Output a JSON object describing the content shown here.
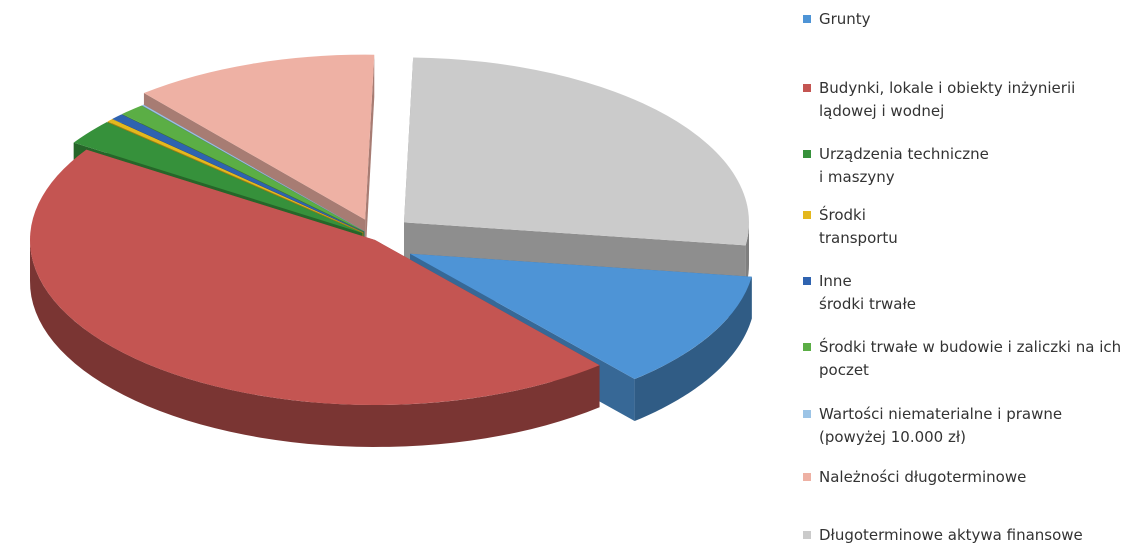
{
  "chart_data": {
    "type": "pie",
    "style": "3d-exploded",
    "title": "",
    "slices": [
      {
        "label": "Grunty",
        "value": 11.5,
        "color": "#4E94D6"
      },
      {
        "label": "Budynki, lokale i obiekty inżynierii\nlądowej i wodnej",
        "value": 45.5,
        "color": "#C45552"
      },
      {
        "label": "Urządzenia techniczne\ni maszyny",
        "value": 2.5,
        "color": "#36913B"
      },
      {
        "label": "Środki\ntransportu",
        "value": 0.3,
        "color": "#E4B81E"
      },
      {
        "label": "Inne\nśrodki trwałe",
        "value": 0.6,
        "color": "#2F63B0"
      },
      {
        "label": "Środki trwałe w budowie i zaliczki na ich\npoczet",
        "value": 1.2,
        "color": "#5BAE45"
      },
      {
        "label": "Wartości niematerialne i prawne\n(powyżej 10.000 zł)",
        "value": 0.1,
        "color": "#9CC4E6"
      },
      {
        "label": "Należności długoterminowe",
        "value": 11.5,
        "color": "#EEB1A4"
      },
      {
        "label": "Długoterminowe aktywa finansowe",
        "value": 26.8,
        "color": "#CBCBCB"
      }
    ],
    "legend_position": "right"
  }
}
